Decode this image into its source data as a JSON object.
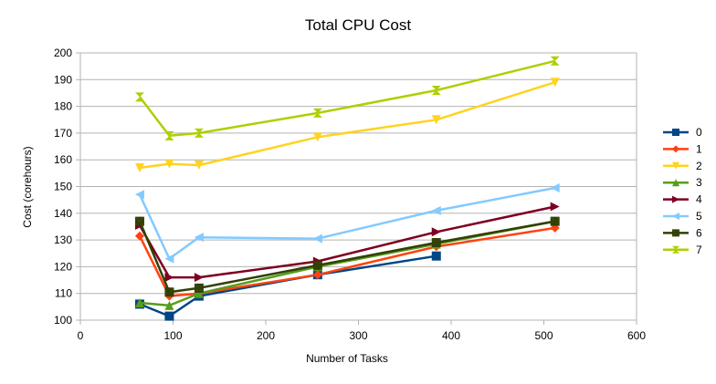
{
  "chart_data": {
    "type": "line",
    "title": "Total CPU Cost",
    "xlabel": "Number of Tasks",
    "ylabel": "Cost (corehours)",
    "xlim": [
      0,
      600
    ],
    "ylim": [
      100,
      200
    ],
    "xticks": [
      0,
      100,
      200,
      300,
      400,
      500,
      600
    ],
    "yticks": [
      100,
      110,
      120,
      130,
      140,
      150,
      160,
      170,
      180,
      190,
      200
    ],
    "grid": "horizontal",
    "legend_position": "right",
    "series": [
      {
        "name": "0",
        "color": "#004586",
        "marker": "square",
        "x": [
          64,
          96,
          128,
          256,
          384
        ],
        "y": [
          106,
          101.5,
          109,
          117,
          124
        ]
      },
      {
        "name": "1",
        "color": "#ff420e",
        "marker": "diamond",
        "x": [
          64,
          96,
          128,
          256,
          384,
          512
        ],
        "y": [
          131.5,
          109,
          110,
          117,
          127.5,
          134.5
        ]
      },
      {
        "name": "2",
        "color": "#ffd320",
        "marker": "triangle-down",
        "x": [
          64,
          96,
          128,
          256,
          384,
          512
        ],
        "y": [
          157,
          158.5,
          158,
          168.5,
          175,
          189
        ]
      },
      {
        "name": "3",
        "color": "#579d1c",
        "marker": "triangle-up",
        "x": [
          64,
          96,
          128,
          256,
          384,
          512
        ],
        "y": [
          106.5,
          105.5,
          110,
          120,
          128.5,
          137
        ]
      },
      {
        "name": "4",
        "color": "#7e0021",
        "marker": "triangle-right",
        "x": [
          64,
          96,
          128,
          256,
          384,
          512
        ],
        "y": [
          135.5,
          116,
          116,
          122,
          133,
          142.5
        ]
      },
      {
        "name": "5",
        "color": "#83caff",
        "marker": "triangle-left",
        "x": [
          64,
          96,
          128,
          256,
          384,
          512
        ],
        "y": [
          147,
          123,
          131,
          130.5,
          141,
          149.5
        ]
      },
      {
        "name": "6",
        "color": "#314004",
        "marker": "x",
        "x": [
          64,
          96,
          128,
          256,
          384,
          512
        ],
        "y": [
          137,
          110.5,
          112,
          120.5,
          129,
          137
        ]
      },
      {
        "name": "7",
        "color": "#aecf00",
        "marker": "hourglass",
        "x": [
          64,
          96,
          128,
          256,
          384,
          512
        ],
        "y": [
          183.5,
          169,
          170,
          177.5,
          186,
          197
        ]
      }
    ]
  }
}
